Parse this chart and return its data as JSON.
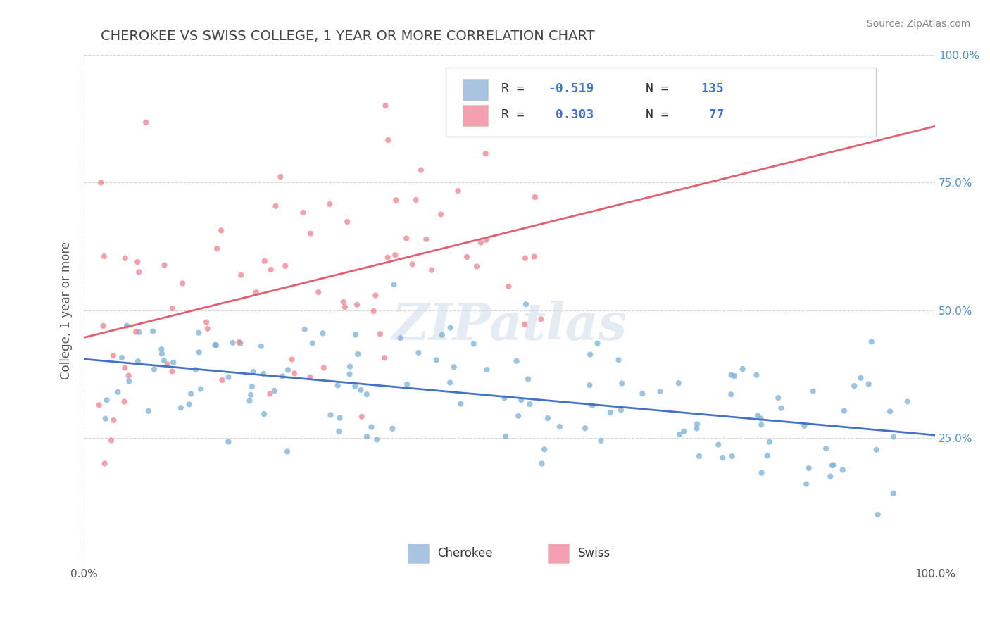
{
  "title": "CHEROKEE VS SWISS COLLEGE, 1 YEAR OR MORE CORRELATION CHART",
  "source_text": "Source: ZipAtlas.com",
  "xlabel": "",
  "ylabel": "College, 1 year or more",
  "xlim": [
    0.0,
    1.0
  ],
  "ylim": [
    0.0,
    1.0
  ],
  "cherokee_color": "#7ab0d8",
  "swiss_color": "#f08090",
  "cherokee_line_color": "#4472c4",
  "swiss_line_color": "#e06070",
  "cherokee_legend_color": "#a8c4e0",
  "swiss_legend_color": "#f4a0b0",
  "R_cherokee": -0.519,
  "N_cherokee": 135,
  "R_swiss": 0.303,
  "N_swiss": 77,
  "watermark": "ZIPatlas",
  "background_color": "#ffffff",
  "grid_color": "#cccccc",
  "title_color": "#444444",
  "title_fontsize": 14,
  "seed": 42
}
